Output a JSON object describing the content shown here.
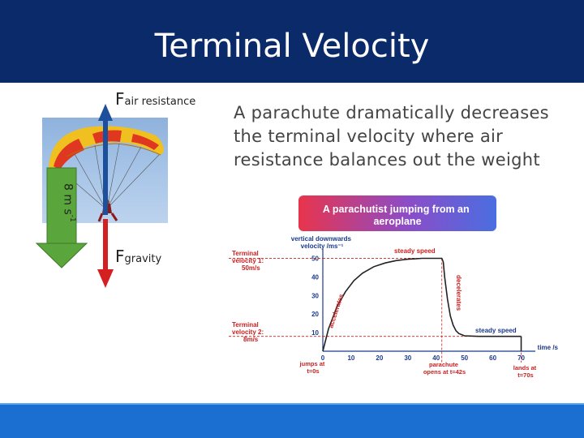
{
  "slide": {
    "title": "Terminal Velocity",
    "description": "A parachute dramatically decreases the terminal velocity where air resistance balances out the weight"
  },
  "diagram": {
    "air_main": "F",
    "air_sub": "air resistance",
    "gravity_main": "F",
    "gravity_sub": "gravity",
    "speed_main": "8 m s",
    "speed_sup": "-1"
  },
  "graph": {
    "banner": "A parachutist jumping from an aeroplane",
    "ylabel": "vertical downwards velocity /ms⁻¹",
    "xlabel": "time /s",
    "tv1_line1": "Terminal",
    "tv1_line2": "velocity 1:",
    "tv1_line3": "50m/s",
    "tv2_line1": "Terminal",
    "tv2_line2": "velocity 2:",
    "tv2_line3": "8m/s",
    "steady1": "steady speed",
    "steady2": "steady speed",
    "accelerates": "accelerates",
    "decelerates": "decelerates",
    "jumps1": "jumps at",
    "jumps2": "t=0s",
    "parachute1": "parachute",
    "parachute2": "opens at t=42s",
    "lands1": "lands at",
    "lands2": "t=70s",
    "yticks": [
      "10",
      "20",
      "30",
      "40",
      "50"
    ],
    "xticks": [
      "0",
      "10",
      "20",
      "30",
      "40",
      "50",
      "60",
      "70"
    ]
  },
  "chart_data": {
    "type": "line",
    "xlabel": "time /s",
    "ylabel": "vertical downwards velocity /ms⁻¹",
    "xlim": [
      0,
      75
    ],
    "ylim": [
      0,
      55
    ],
    "series": [
      {
        "x": [
          0,
          2,
          5,
          8,
          11,
          14,
          18,
          22,
          26,
          30,
          35,
          42,
          42.5,
          43,
          44,
          45,
          46,
          47,
          48,
          50,
          55,
          60,
          65,
          70
        ],
        "y": [
          0,
          12,
          24,
          32,
          38,
          42,
          45.5,
          47.5,
          48.8,
          49.5,
          50,
          50,
          48,
          40,
          28,
          19,
          14,
          11,
          9.5,
          8.3,
          8,
          8,
          8,
          8
        ]
      }
    ]
  },
  "colors": {
    "header": "#0a2a6a",
    "footer": "#1a6fd0",
    "arrow_up": "#1c4f9c",
    "arrow_down": "#d42020",
    "arrow_green": "#5aa53c",
    "graph_red": "#cc2020",
    "graph_blue": "#1b3a8c"
  }
}
